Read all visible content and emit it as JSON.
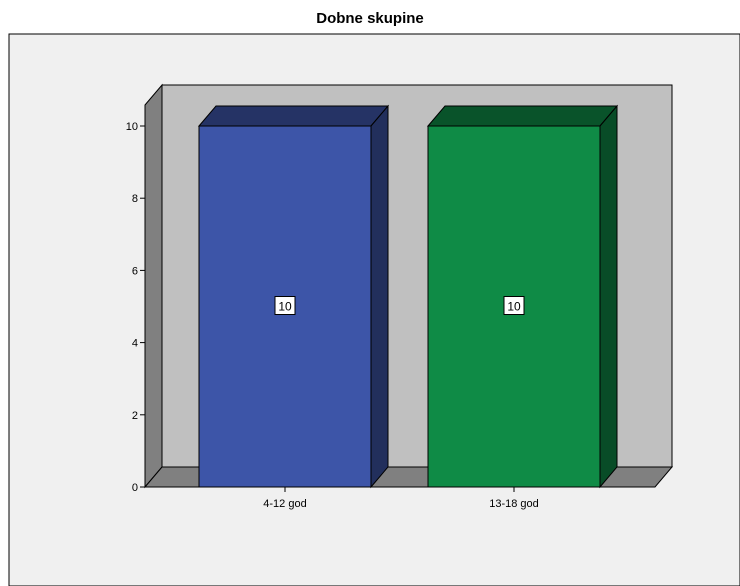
{
  "chart_data": {
    "type": "bar",
    "title": "Dobne skupine",
    "categories": [
      "4-12 god",
      "13-18 god"
    ],
    "values": [
      10,
      10
    ],
    "data_labels": [
      "10",
      "10"
    ],
    "xlabel": "",
    "ylabel": "",
    "ylim": [
      0,
      10
    ],
    "yticks": [
      "0",
      "2",
      "4",
      "6",
      "8",
      "10"
    ],
    "bar_colors": [
      "#3d55a8",
      "#0f8b46"
    ],
    "grid": false,
    "legend": "none"
  },
  "colors": {
    "outer_background": "#f0f0f0",
    "plot_back_wall": "#c0c0c0",
    "plot_floor": "#808080"
  }
}
